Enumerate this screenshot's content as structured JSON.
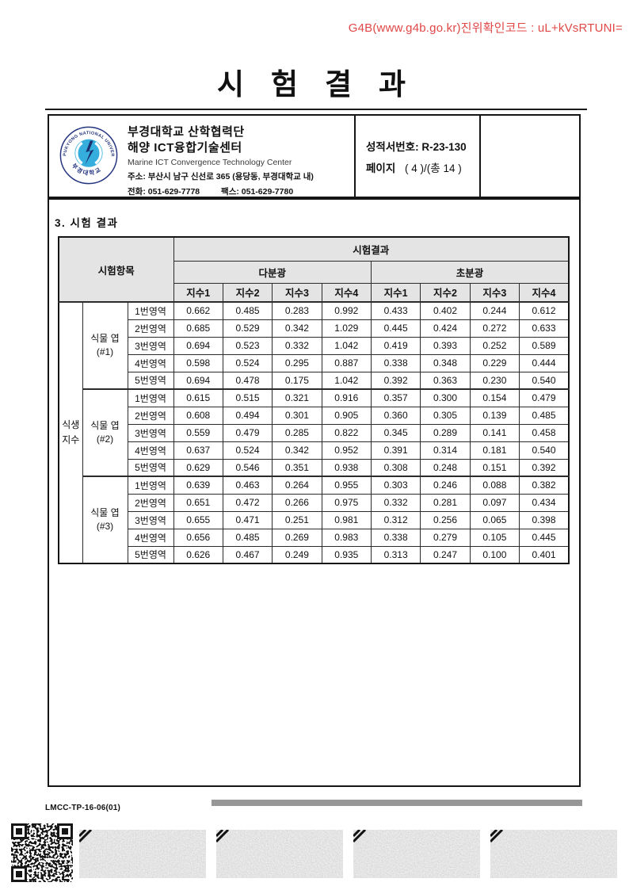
{
  "verification_code": "G4B(www.g4b.go.kr)진위확인코드 : uL+kVsRTUNI=",
  "title": "시 험 결 과",
  "org": {
    "name_line1": "부경대학교 산학협력단",
    "name_line2": "해양 ICT융합기술센터",
    "name_en": "Marine ICT Convergence Technology Center",
    "address": "주소: 부산시 남구 신선로 365 (용당동, 부경대학교 내)",
    "phone": "전화: 051-629-7778",
    "fax": "팩스:  051-629-7780"
  },
  "report": {
    "number_label": "성적서번호:",
    "number": "R-23-130",
    "page_label": "페이지",
    "page_value": "( 4 )/(총 14 )"
  },
  "section_title": "3. 시험 결과",
  "table": {
    "col_item": "시험항목",
    "col_result": "시험결과",
    "group_multi": "다분광",
    "group_hyper": "초분광",
    "index_headers": [
      "지수1",
      "지수2",
      "지수3",
      "지수4"
    ],
    "category_line1": "식생",
    "category_line2": "지수",
    "groups": [
      {
        "label": "식물 엽",
        "sub": "(#1)",
        "rows": [
          {
            "region": "1번영역",
            "multi": [
              "0.662",
              "0.485",
              "0.283",
              "0.992"
            ],
            "hyper": [
              "0.433",
              "0.402",
              "0.244",
              "0.612"
            ]
          },
          {
            "region": "2번영역",
            "multi": [
              "0.685",
              "0.529",
              "0.342",
              "1.029"
            ],
            "hyper": [
              "0.445",
              "0.424",
              "0.272",
              "0.633"
            ]
          },
          {
            "region": "3번영역",
            "multi": [
              "0.694",
              "0.523",
              "0.332",
              "1.042"
            ],
            "hyper": [
              "0.419",
              "0.393",
              "0.252",
              "0.589"
            ]
          },
          {
            "region": "4번영역",
            "multi": [
              "0.598",
              "0.524",
              "0.295",
              "0.887"
            ],
            "hyper": [
              "0.338",
              "0.348",
              "0.229",
              "0.444"
            ]
          },
          {
            "region": "5번영역",
            "multi": [
              "0.694",
              "0.478",
              "0.175",
              "1.042"
            ],
            "hyper": [
              "0.392",
              "0.363",
              "0.230",
              "0.540"
            ]
          }
        ]
      },
      {
        "label": "식물 엽",
        "sub": "(#2)",
        "rows": [
          {
            "region": "1번영역",
            "multi": [
              "0.615",
              "0.515",
              "0.321",
              "0.916"
            ],
            "hyper": [
              "0.357",
              "0.300",
              "0.154",
              "0.479"
            ]
          },
          {
            "region": "2번영역",
            "multi": [
              "0.608",
              "0.494",
              "0.301",
              "0.905"
            ],
            "hyper": [
              "0.360",
              "0.305",
              "0.139",
              "0.485"
            ]
          },
          {
            "region": "3번영역",
            "multi": [
              "0.559",
              "0.479",
              "0.285",
              "0.822"
            ],
            "hyper": [
              "0.345",
              "0.289",
              "0.141",
              "0.458"
            ]
          },
          {
            "region": "4번영역",
            "multi": [
              "0.637",
              "0.524",
              "0.342",
              "0.952"
            ],
            "hyper": [
              "0.391",
              "0.314",
              "0.181",
              "0.540"
            ]
          },
          {
            "region": "5번영역",
            "multi": [
              "0.629",
              "0.546",
              "0.351",
              "0.938"
            ],
            "hyper": [
              "0.308",
              "0.248",
              "0.151",
              "0.392"
            ]
          }
        ]
      },
      {
        "label": "식물 엽",
        "sub": "(#3)",
        "rows": [
          {
            "region": "1번영역",
            "multi": [
              "0.639",
              "0.463",
              "0.264",
              "0.955"
            ],
            "hyper": [
              "0.303",
              "0.246",
              "0.088",
              "0.382"
            ]
          },
          {
            "region": "2번영역",
            "multi": [
              "0.651",
              "0.472",
              "0.266",
              "0.975"
            ],
            "hyper": [
              "0.332",
              "0.281",
              "0.097",
              "0.434"
            ]
          },
          {
            "region": "3번영역",
            "multi": [
              "0.655",
              "0.471",
              "0.251",
              "0.981"
            ],
            "hyper": [
              "0.312",
              "0.256",
              "0.065",
              "0.398"
            ]
          },
          {
            "region": "4번영역",
            "multi": [
              "0.656",
              "0.485",
              "0.269",
              "0.983"
            ],
            "hyper": [
              "0.338",
              "0.279",
              "0.105",
              "0.445"
            ]
          },
          {
            "region": "5번영역",
            "multi": [
              "0.626",
              "0.467",
              "0.249",
              "0.935"
            ],
            "hyper": [
              "0.313",
              "0.247",
              "0.100",
              "0.401"
            ]
          }
        ]
      }
    ]
  },
  "footer": {
    "doc_code": "LMCC-TP-16-06(01)"
  },
  "icons": {
    "logo": "university-emblem",
    "qr": "qr-code",
    "strips": "scan-watermark-strip"
  },
  "colors": {
    "verification_red": "#E04747",
    "table_header_bg": "#E4E4E4",
    "border_dark": "#151515",
    "footer_bar_gray": "#979797",
    "logo_navy": "#23357F",
    "logo_cyan": "#35AEDE"
  }
}
